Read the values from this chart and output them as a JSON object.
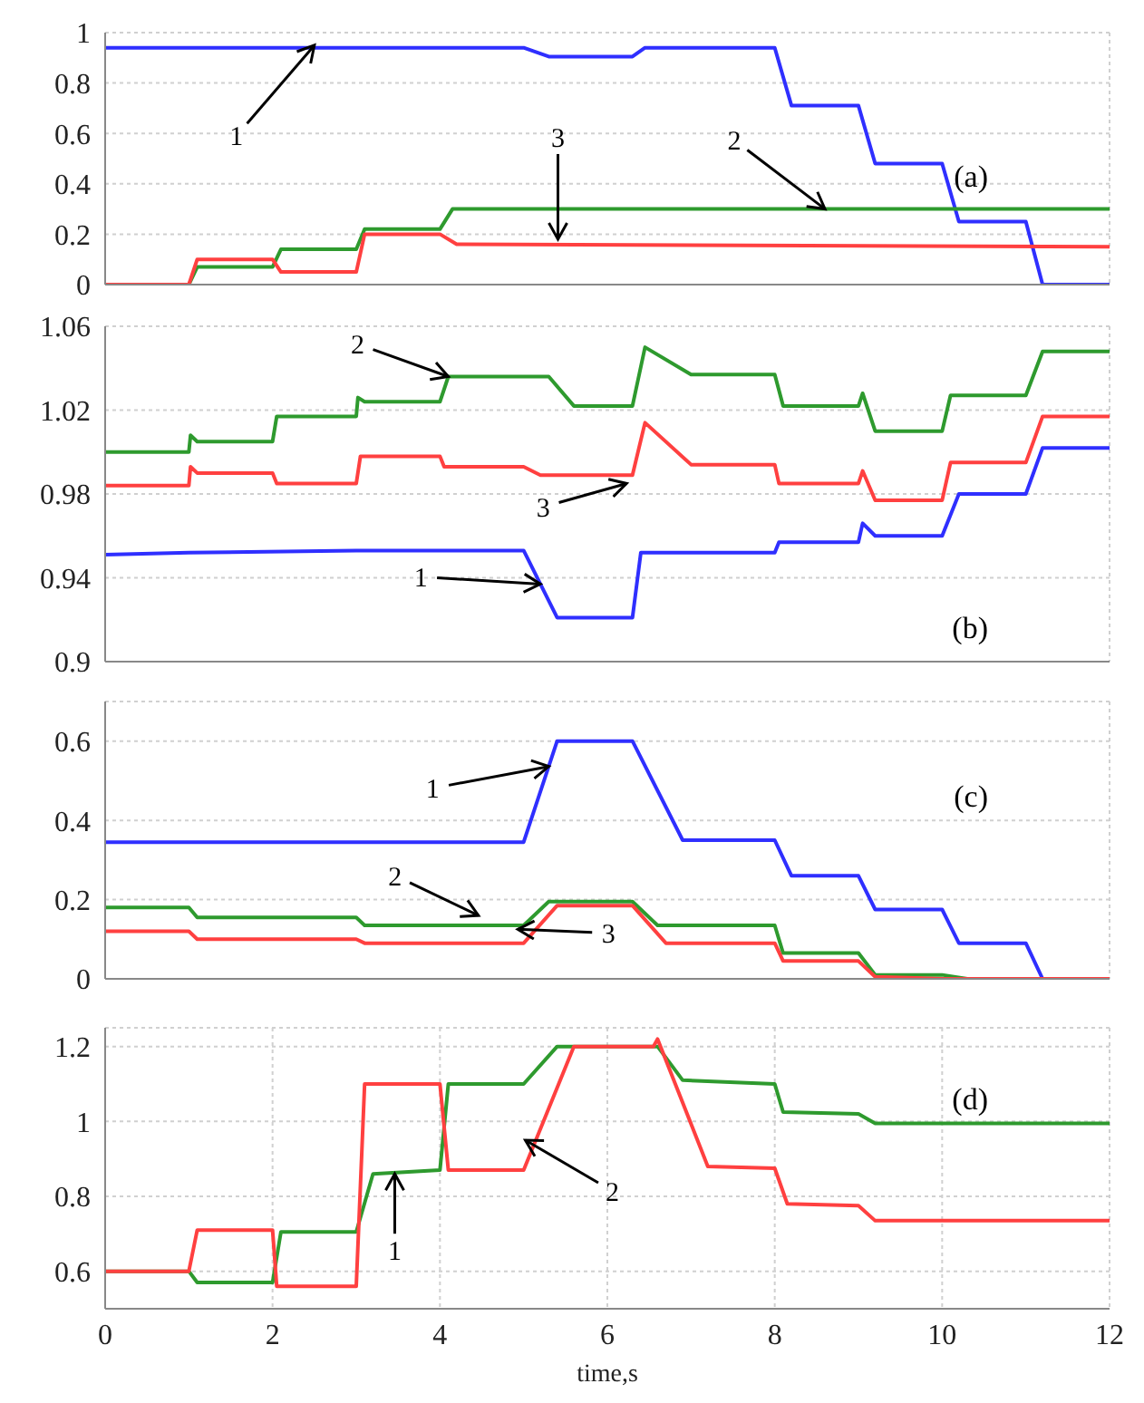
{
  "chart_data": [
    {
      "type": "line",
      "xlim": [
        0,
        12
      ],
      "xticks": [
        0,
        2,
        4,
        6,
        8,
        10,
        12
      ],
      "ylim": [
        0,
        1
      ],
      "yticks": [
        0,
        0.2,
        0.4,
        0.6,
        0.8,
        1
      ],
      "grid": true,
      "tick_labels": "y",
      "marker": "none",
      "line_style": "solid",
      "annotations": [
        "(a)",
        {
          "text": "1",
          "x": 2.5,
          "y": 0.95
        },
        {
          "text": "2",
          "x": 8.6,
          "y": 0.3
        },
        {
          "text": "3",
          "x": 5.41,
          "y": 0.18
        }
      ],
      "series": [
        {
          "color": "#2f2fff",
          "x": [
            0,
            5,
            5.3,
            6.3,
            6.45,
            8,
            8.2,
            9,
            9.2,
            10,
            10.2,
            11,
            11.2,
            12
          ],
          "values": [
            0.94,
            0.94,
            0.905,
            0.905,
            0.94,
            0.94,
            0.71,
            0.71,
            0.48,
            0.48,
            0.25,
            0.25,
            0,
            0
          ]
        },
        {
          "color": "#2e9a2e",
          "x": [
            0,
            1,
            1.1,
            2,
            2.1,
            3,
            3.1,
            4,
            4.15,
            12
          ],
          "values": [
            0,
            0,
            0.07,
            0.07,
            0.14,
            0.14,
            0.22,
            0.22,
            0.3,
            0.3
          ]
        },
        {
          "color": "#ff4040",
          "x": [
            0,
            1,
            1.1,
            2,
            2.1,
            3,
            3.1,
            4,
            4.2,
            12
          ],
          "values": [
            0,
            0,
            0.1,
            0.1,
            0.05,
            0.05,
            0.2,
            0.2,
            0.16,
            0.15
          ]
        }
      ]
    },
    {
      "type": "line",
      "xlim": [
        0,
        12
      ],
      "xticks": [
        0,
        2,
        4,
        6,
        8,
        10,
        12
      ],
      "ylim": [
        0.9,
        1.06
      ],
      "yticks": [
        0.9,
        0.94,
        0.98,
        1.02,
        1.06
      ],
      "grid": true,
      "tick_labels": "y",
      "marker": "none",
      "line_style": "solid",
      "annotations": [
        "(b)",
        {
          "text": "2",
          "x": 4.1,
          "y": 1.036
        },
        {
          "text": "3",
          "x": 6.23,
          "y": 0.985
        },
        {
          "text": "1",
          "x": 5.2,
          "y": 0.937
        }
      ],
      "series": [
        {
          "color": "#2f2fff",
          "x": [
            0,
            1,
            3,
            5,
            5.4,
            6.3,
            6.4,
            8,
            8.05,
            9,
            9.05,
            9.2,
            10,
            10.2,
            11,
            11.2,
            12
          ],
          "values": [
            0.951,
            0.952,
            0.953,
            0.953,
            0.921,
            0.921,
            0.952,
            0.952,
            0.957,
            0.957,
            0.966,
            0.96,
            0.96,
            0.98,
            0.98,
            1.002,
            1.002
          ]
        },
        {
          "color": "#2e9a2e",
          "x": [
            0,
            1,
            1.02,
            1.1,
            2,
            2.05,
            3,
            3.02,
            3.1,
            4,
            4.1,
            5.3,
            5.6,
            6.3,
            6.45,
            7,
            8,
            8.1,
            9,
            9.05,
            9.2,
            10,
            10.1,
            11,
            11.2,
            12
          ],
          "values": [
            1.0,
            1.0,
            1.008,
            1.005,
            1.005,
            1.017,
            1.017,
            1.026,
            1.024,
            1.024,
            1.036,
            1.036,
            1.022,
            1.022,
            1.05,
            1.037,
            1.037,
            1.022,
            1.022,
            1.028,
            1.01,
            1.01,
            1.027,
            1.027,
            1.048,
            1.048
          ]
        },
        {
          "color": "#ff4040",
          "x": [
            0,
            1,
            1.02,
            1.1,
            2,
            2.05,
            3,
            3.05,
            4,
            4.05,
            5,
            5.2,
            6.3,
            6.45,
            7,
            8,
            8.05,
            9,
            9.05,
            9.2,
            10,
            10.1,
            11,
            11.2,
            12
          ],
          "values": [
            0.984,
            0.984,
            0.993,
            0.99,
            0.99,
            0.985,
            0.985,
            0.998,
            0.998,
            0.993,
            0.993,
            0.989,
            0.989,
            1.014,
            0.994,
            0.994,
            0.985,
            0.985,
            0.991,
            0.977,
            0.977,
            0.995,
            0.995,
            1.017,
            1.017
          ]
        }
      ]
    },
    {
      "type": "line",
      "xlim": [
        0,
        12
      ],
      "xticks": [
        0,
        2,
        4,
        6,
        8,
        10,
        12
      ],
      "ylim": [
        0,
        0.7
      ],
      "yticks": [
        0,
        0.2,
        0.4,
        0.6
      ],
      "grid": true,
      "tick_labels": "y",
      "marker": "none",
      "line_style": "solid",
      "annotations": [
        "(c)",
        {
          "text": "1",
          "x": 5.3,
          "y": 0.536
        },
        {
          "text": "2",
          "x": 4.46,
          "y": 0.16
        },
        {
          "text": "3",
          "x": 4.93,
          "y": 0.125
        }
      ],
      "series": [
        {
          "color": "#2f2fff",
          "x": [
            0,
            5,
            5.4,
            6.3,
            6.9,
            8,
            8.2,
            9,
            9.2,
            10,
            10.2,
            11,
            11.2,
            12
          ],
          "values": [
            0.345,
            0.345,
            0.6,
            0.6,
            0.35,
            0.35,
            0.26,
            0.26,
            0.175,
            0.175,
            0.09,
            0.09,
            0,
            0
          ]
        },
        {
          "color": "#2e9a2e",
          "x": [
            0,
            1,
            1.1,
            3,
            3.1,
            5,
            5.3,
            6.3,
            6.6,
            8,
            8.1,
            9,
            9.2,
            10,
            10.3,
            12
          ],
          "values": [
            0.18,
            0.18,
            0.155,
            0.155,
            0.135,
            0.135,
            0.195,
            0.195,
            0.135,
            0.135,
            0.065,
            0.065,
            0.01,
            0.01,
            0,
            0
          ]
        },
        {
          "color": "#ff4040",
          "x": [
            0,
            1,
            1.1,
            3,
            3.1,
            5,
            5.4,
            6.3,
            6.7,
            8,
            8.1,
            9,
            9.2,
            10,
            12
          ],
          "values": [
            0.12,
            0.12,
            0.1,
            0.1,
            0.09,
            0.09,
            0.185,
            0.185,
            0.09,
            0.09,
            0.045,
            0.045,
            0.005,
            0,
            0
          ]
        }
      ]
    },
    {
      "type": "line",
      "xlim": [
        0,
        12
      ],
      "xticks": [
        0,
        2,
        4,
        6,
        8,
        10,
        12
      ],
      "ylim": [
        0.5,
        1.25
      ],
      "yticks": [
        0.6,
        0.8,
        1,
        1.2
      ],
      "grid": true,
      "marker": "none",
      "line_style": "solid",
      "xlabel": "time,s",
      "annotations": [
        "(d)",
        {
          "text": "1",
          "x": 3.46,
          "y": 0.86
        },
        {
          "text": "2",
          "x": 5.02,
          "y": 0.95
        }
      ],
      "series": [
        {
          "color": "#2e9a2e",
          "x": [
            0,
            1,
            1.1,
            2,
            2.1,
            3,
            3.2,
            4,
            4.1,
            5,
            5.4,
            6.6,
            6.9,
            8,
            8.1,
            9,
            9.2,
            12
          ],
          "values": [
            0.6,
            0.6,
            0.57,
            0.57,
            0.705,
            0.705,
            0.86,
            0.87,
            1.1,
            1.1,
            1.2,
            1.2,
            1.11,
            1.1,
            1.025,
            1.02,
            0.995,
            0.995
          ]
        },
        {
          "color": "#ff4040",
          "x": [
            0,
            1,
            1.1,
            2,
            2.05,
            3,
            3.1,
            4,
            4.1,
            5,
            5.6,
            6.55,
            6.6,
            7.2,
            8,
            8.15,
            9,
            9.2,
            12
          ],
          "values": [
            0.6,
            0.6,
            0.71,
            0.71,
            0.56,
            0.56,
            1.1,
            1.1,
            0.87,
            0.87,
            1.2,
            1.2,
            1.22,
            0.88,
            0.875,
            0.78,
            0.775,
            0.735,
            0.735
          ]
        }
      ]
    }
  ]
}
